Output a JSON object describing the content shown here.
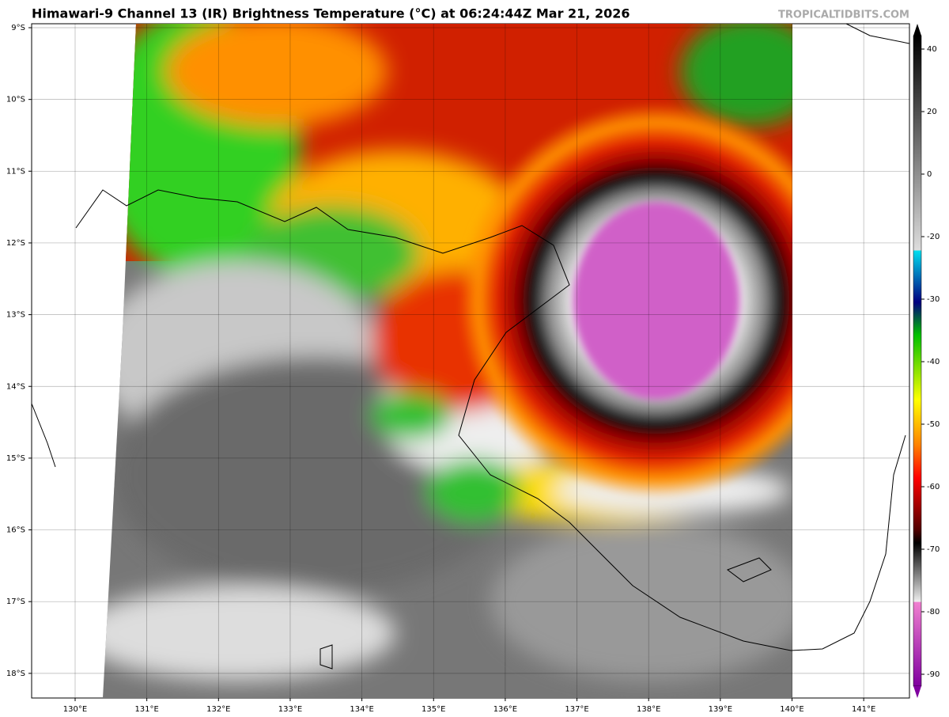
{
  "title": "Himawari-9 Channel 13 (IR) Brightness Temperature (°C) at 06:24:44Z Mar 21, 2026",
  "watermark": "TROPICALTIDBITS.COM",
  "lat_labels": [
    "9°S",
    "10°S",
    "11°S",
    "12°S",
    "13°S",
    "14°S",
    "15°S",
    "16°S",
    "17°S",
    "18°S"
  ],
  "lon_labels": [
    "130°E",
    "131°E",
    "132°E",
    "133°E",
    "134°E",
    "135°E",
    "136°E",
    "137°E",
    "138°E",
    "139°E",
    "140°E",
    "141°E"
  ],
  "colorbar_labels": [
    40,
    20,
    0,
    -20,
    -30,
    -40,
    -50,
    -60,
    -70,
    -80,
    -90
  ]
}
